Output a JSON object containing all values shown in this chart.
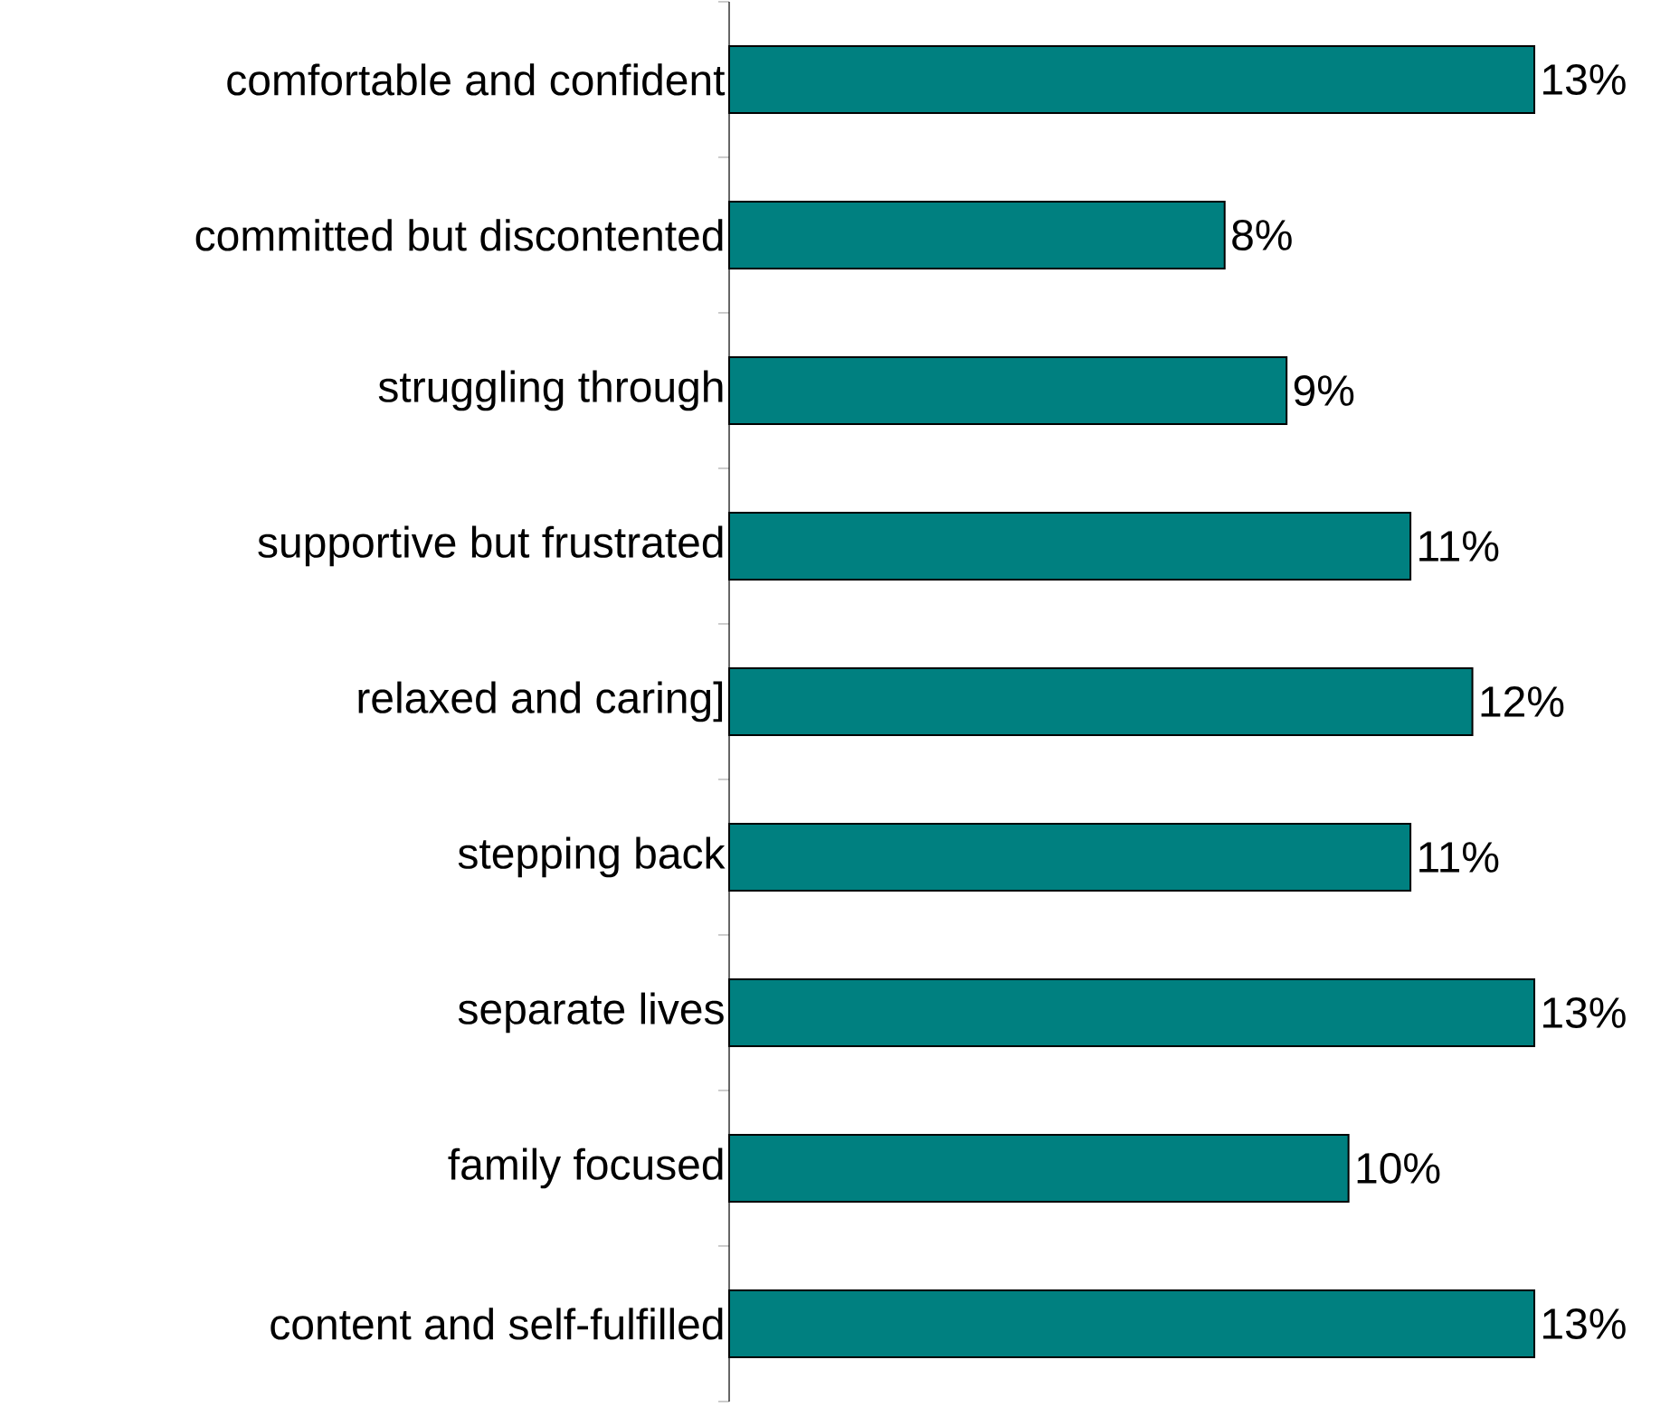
{
  "chart_data": {
    "type": "bar",
    "orientation": "horizontal",
    "color": "#008080",
    "categories": [
      "comfortable and confident",
      "committed but discontented",
      "struggling through",
      "supportive but frustrated",
      "relaxed and caring]",
      "stepping back",
      "separate lives",
      "family focused",
      "content and self-fulfilled"
    ],
    "values": [
      13,
      8,
      9,
      11,
      12,
      11,
      13,
      10,
      13
    ],
    "value_labels": [
      "13%",
      "8%",
      "9%",
      "11%",
      "12%",
      "11%",
      "13%",
      "10%",
      "13%"
    ]
  }
}
